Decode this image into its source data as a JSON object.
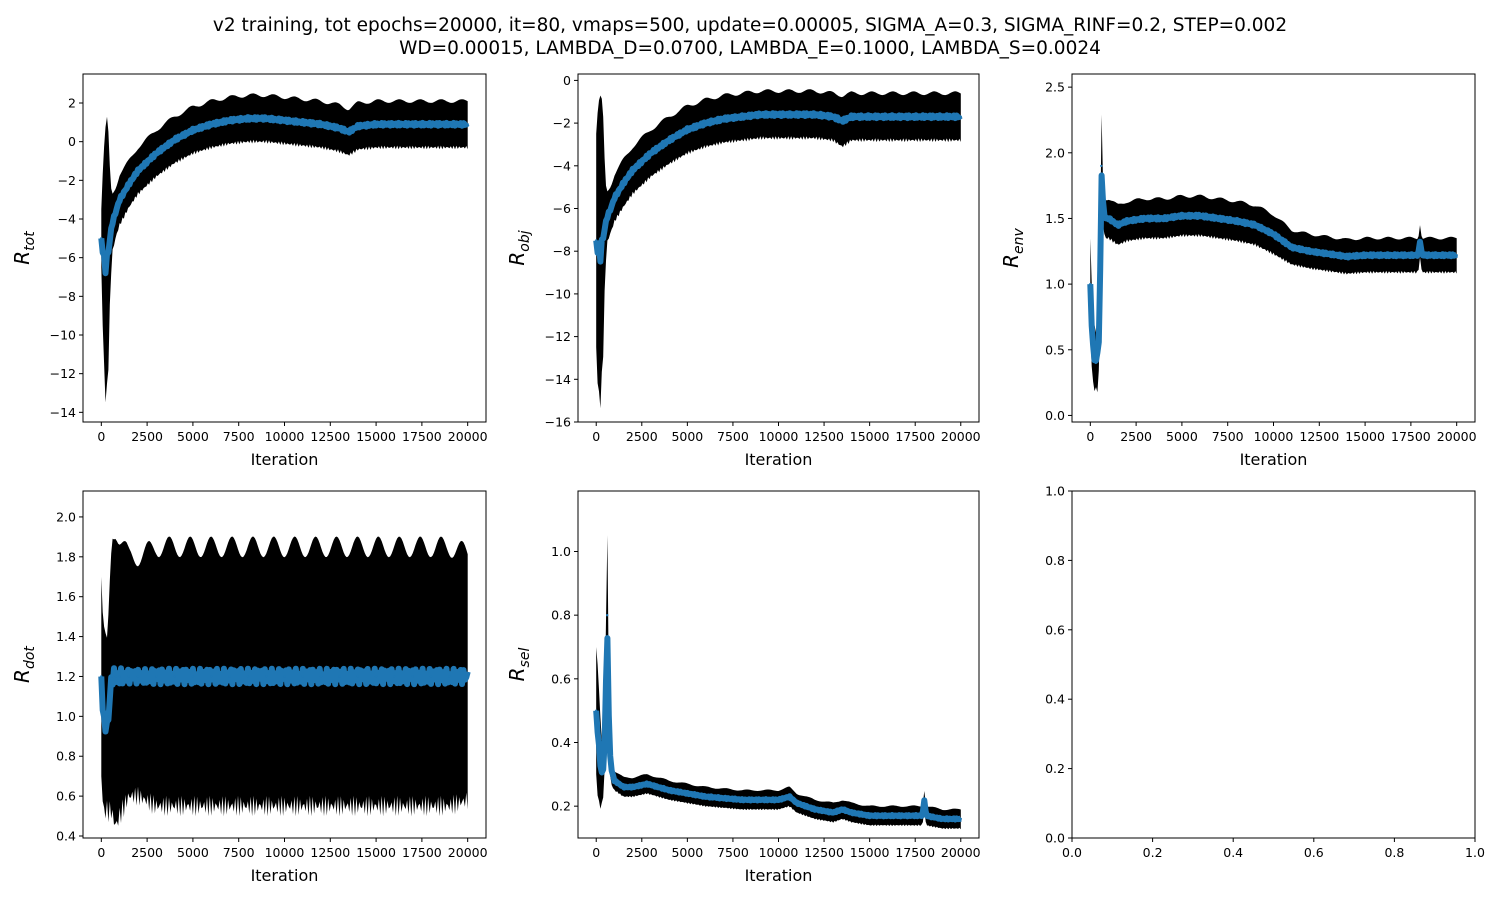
{
  "figure": {
    "title_line1": "v2 training, tot epochs=20000, it=80, vmaps=500, update=0.00005, SIGMA_A=0.3, SIGMA_RINF=0.2, STEP=0.002",
    "title_line2": "WD=0.00015, LAMBDA_D=0.0700, LAMBDA_E=0.1000, LAMBDA_S=0.0024"
  },
  "colors": {
    "mean_line": "#1f77b4",
    "errorbar": "#000000"
  },
  "chart_data": [
    {
      "id": "tot",
      "type": "line",
      "error_bars": true,
      "ylabel_main": "R",
      "ylabel_sub": "tot",
      "xlabel": "Iteration",
      "xlim": [
        -1000,
        21000
      ],
      "ylim": [
        -14.5,
        3.5
      ],
      "xticks": [
        0,
        2500,
        5000,
        7500,
        10000,
        12500,
        15000,
        17500,
        20000
      ],
      "xtick_labels": [
        "0",
        "2500",
        "5000",
        "7500",
        "10000",
        "12500",
        "15000",
        "17500",
        "20000"
      ],
      "yticks": [
        -14,
        -12,
        -10,
        -8,
        -6,
        -4,
        -2,
        0,
        2
      ],
      "ytick_labels": [
        "−14",
        "−12",
        "−10",
        "−8",
        "−6",
        "−4",
        "−2",
        "0",
        "2"
      ],
      "series": [
        {
          "x": [
            0,
            100,
            200,
            300,
            400,
            500,
            600,
            800,
            1000,
            1500,
            2000,
            3000,
            4000,
            5000,
            6000,
            7000,
            8000,
            9000,
            10000,
            11000,
            12000,
            13000,
            13500,
            14000,
            15000,
            16000,
            17000,
            18000,
            19000,
            20000
          ],
          "y": [
            -5.0,
            -5.8,
            -6.5,
            -6.2,
            -5.5,
            -4.8,
            -4.2,
            -3.6,
            -3.0,
            -2.2,
            -1.5,
            -0.6,
            0.1,
            0.6,
            0.9,
            1.1,
            1.2,
            1.2,
            1.1,
            1.0,
            0.9,
            0.7,
            0.5,
            0.8,
            0.9,
            0.9,
            0.9,
            0.9,
            0.9,
            0.9
          ],
          "err": [
            1.5,
            4.5,
            6.5,
            7.0,
            5.5,
            2.5,
            1.5,
            1.3,
            1.3,
            1.2,
            1.2,
            1.2,
            1.2,
            1.2,
            1.2,
            1.2,
            1.2,
            1.2,
            1.2,
            1.2,
            1.2,
            1.2,
            1.2,
            1.2,
            1.2,
            1.2,
            1.2,
            1.2,
            1.2,
            1.2
          ]
        }
      ]
    },
    {
      "id": "obj",
      "type": "line",
      "error_bars": true,
      "ylabel_main": "R",
      "ylabel_sub": "obj",
      "xlabel": "Iteration",
      "xlim": [
        -1000,
        21000
      ],
      "ylim": [
        -16,
        0.3
      ],
      "xticks": [
        0,
        2500,
        5000,
        7500,
        10000,
        12500,
        15000,
        17500,
        20000
      ],
      "xtick_labels": [
        "0",
        "2500",
        "5000",
        "7500",
        "10000",
        "12500",
        "15000",
        "17500",
        "20000"
      ],
      "yticks": [
        -16,
        -14,
        -12,
        -10,
        -8,
        -6,
        -4,
        -2,
        0
      ],
      "ytick_labels": [
        "−16",
        "−14",
        "−12",
        "−10",
        "−8",
        "−6",
        "−4",
        "−2",
        "0"
      ],
      "series": [
        {
          "x": [
            0,
            100,
            200,
            300,
            400,
            500,
            600,
            800,
            1000,
            1500,
            2000,
            3000,
            4000,
            5000,
            6000,
            7000,
            8000,
            9000,
            10000,
            11000,
            12000,
            13000,
            13500,
            14000,
            15000,
            16000,
            17000,
            18000,
            19000,
            20000
          ],
          "y": [
            -7.5,
            -8.0,
            -8.2,
            -7.8,
            -7.2,
            -6.8,
            -6.4,
            -6.0,
            -5.5,
            -4.8,
            -4.2,
            -3.4,
            -2.8,
            -2.3,
            -2.0,
            -1.8,
            -1.7,
            -1.6,
            -1.6,
            -1.6,
            -1.6,
            -1.7,
            -1.9,
            -1.7,
            -1.7,
            -1.7,
            -1.7,
            -1.7,
            -1.7,
            -1.7
          ],
          "err": [
            5.0,
            6.5,
            7.0,
            6.5,
            5.0,
            2.0,
            1.2,
            1.1,
            1.1,
            1.1,
            1.1,
            1.1,
            1.1,
            1.1,
            1.1,
            1.1,
            1.1,
            1.1,
            1.1,
            1.1,
            1.1,
            1.1,
            1.2,
            1.1,
            1.1,
            1.1,
            1.1,
            1.1,
            1.1,
            1.1
          ]
        }
      ]
    },
    {
      "id": "env",
      "type": "line",
      "error_bars": true,
      "ylabel_main": "R",
      "ylabel_sub": "env",
      "xlabel": "Iteration",
      "xlim": [
        -1000,
        21000
      ],
      "ylim": [
        -0.05,
        2.6
      ],
      "xticks": [
        0,
        2500,
        5000,
        7500,
        10000,
        12500,
        15000,
        17500,
        20000
      ],
      "xtick_labels": [
        "0",
        "2500",
        "5000",
        "7500",
        "10000",
        "12500",
        "15000",
        "17500",
        "20000"
      ],
      "yticks": [
        0.0,
        0.5,
        1.0,
        1.5,
        2.0,
        2.5
      ],
      "ytick_labels": [
        "0.0",
        "0.5",
        "1.0",
        "1.5",
        "2.0",
        "2.5"
      ],
      "series": [
        {
          "x": [
            0,
            100,
            200,
            300,
            400,
            500,
            600,
            700,
            800,
            1000,
            1500,
            2000,
            3000,
            4000,
            5000,
            6000,
            7000,
            8000,
            9000,
            10000,
            11000,
            12000,
            13000,
            14000,
            15000,
            16000,
            17000,
            17900,
            18000,
            18100,
            19000,
            20000
          ],
          "y": [
            1.0,
            0.6,
            0.45,
            0.4,
            0.5,
            0.6,
            1.9,
            1.6,
            1.5,
            1.5,
            1.45,
            1.48,
            1.5,
            1.5,
            1.52,
            1.52,
            1.5,
            1.48,
            1.45,
            1.38,
            1.28,
            1.25,
            1.23,
            1.21,
            1.22,
            1.22,
            1.22,
            1.22,
            1.33,
            1.22,
            1.22,
            1.22
          ],
          "err": [
            0.35,
            0.3,
            0.25,
            0.2,
            0.3,
            0.2,
            0.5,
            0.15,
            0.15,
            0.15,
            0.15,
            0.15,
            0.15,
            0.15,
            0.15,
            0.15,
            0.15,
            0.15,
            0.15,
            0.15,
            0.13,
            0.13,
            0.13,
            0.13,
            0.13,
            0.13,
            0.13,
            0.13,
            0.13,
            0.13,
            0.13,
            0.13
          ]
        }
      ]
    },
    {
      "id": "dot",
      "type": "line",
      "error_bars": true,
      "ylabel_main": "R",
      "ylabel_sub": "dot",
      "xlabel": "Iteration",
      "xlim": [
        -1000,
        21000
      ],
      "ylim": [
        0.39,
        2.13
      ],
      "xticks": [
        0,
        2500,
        5000,
        7500,
        10000,
        12500,
        15000,
        17500,
        20000
      ],
      "xtick_labels": [
        "0",
        "2500",
        "5000",
        "7500",
        "10000",
        "12500",
        "15000",
        "17500",
        "20000"
      ],
      "yticks": [
        0.4,
        0.6,
        0.8,
        1.0,
        1.2,
        1.4,
        1.6,
        1.8,
        2.0
      ],
      "ytick_labels": [
        "0.4",
        "0.6",
        "0.8",
        "1.0",
        "1.2",
        "1.4",
        "1.6",
        "1.8",
        "2.0"
      ],
      "series": [
        {
          "x": [
            0,
            100,
            200,
            300,
            400,
            500,
            600,
            800,
            1000,
            1500,
            2000,
            3000,
            4000,
            5000,
            6000,
            7000,
            8000,
            9000,
            10000,
            11000,
            12000,
            13000,
            14000,
            15000,
            16000,
            17000,
            18000,
            19000,
            20000
          ],
          "y": [
            1.2,
            1.0,
            0.95,
            0.95,
            1.0,
            1.15,
            1.2,
            1.2,
            1.2,
            1.2,
            1.2,
            1.2,
            1.2,
            1.2,
            1.2,
            1.2,
            1.2,
            1.2,
            1.2,
            1.2,
            1.2,
            1.2,
            1.2,
            1.2,
            1.2,
            1.2,
            1.2,
            1.2,
            1.2
          ],
          "err": [
            0.5,
            0.45,
            0.45,
            0.4,
            0.5,
            0.6,
            0.7,
            0.75,
            0.7,
            0.6,
            0.6,
            0.65,
            0.65,
            0.65,
            0.65,
            0.65,
            0.65,
            0.65,
            0.65,
            0.65,
            0.65,
            0.65,
            0.65,
            0.65,
            0.65,
            0.65,
            0.65,
            0.65,
            0.62
          ]
        }
      ]
    },
    {
      "id": "sel",
      "type": "line",
      "error_bars": true,
      "ylabel_main": "R",
      "ylabel_sub": "sel",
      "xlabel": "Iteration",
      "xlim": [
        -1000,
        21000
      ],
      "ylim": [
        0.1,
        1.19
      ],
      "xticks": [
        0,
        2500,
        5000,
        7500,
        10000,
        12500,
        15000,
        17500,
        20000
      ],
      "xtick_labels": [
        "0",
        "2500",
        "5000",
        "7500",
        "10000",
        "12500",
        "15000",
        "17500",
        "20000"
      ],
      "yticks": [
        0.2,
        0.4,
        0.6,
        0.8,
        1.0
      ],
      "ytick_labels": [
        "0.2",
        "0.4",
        "0.6",
        "0.8",
        "1.0"
      ],
      "series": [
        {
          "x": [
            0,
            100,
            200,
            300,
            400,
            500,
            600,
            700,
            800,
            1000,
            1500,
            2000,
            2800,
            4000,
            5000,
            6000,
            7000,
            8000,
            9000,
            10000,
            10600,
            11000,
            12000,
            13000,
            13500,
            14000,
            15000,
            16000,
            17000,
            17900,
            18000,
            18100,
            19000,
            20000
          ],
          "y": [
            0.5,
            0.42,
            0.35,
            0.3,
            0.32,
            0.45,
            0.8,
            0.45,
            0.32,
            0.28,
            0.26,
            0.26,
            0.27,
            0.25,
            0.24,
            0.23,
            0.225,
            0.22,
            0.22,
            0.22,
            0.23,
            0.21,
            0.19,
            0.18,
            0.19,
            0.18,
            0.17,
            0.17,
            0.17,
            0.17,
            0.22,
            0.17,
            0.16,
            0.16
          ],
          "err": [
            0.2,
            0.2,
            0.15,
            0.1,
            0.08,
            0.1,
            0.35,
            0.1,
            0.05,
            0.03,
            0.03,
            0.03,
            0.03,
            0.03,
            0.03,
            0.03,
            0.03,
            0.03,
            0.03,
            0.03,
            0.03,
            0.03,
            0.03,
            0.03,
            0.03,
            0.03,
            0.03,
            0.03,
            0.03,
            0.03,
            0.03,
            0.03,
            0.03,
            0.03
          ]
        }
      ]
    },
    {
      "id": "empty",
      "type": "line",
      "error_bars": false,
      "ylabel_main": "",
      "ylabel_sub": "",
      "xlabel": "",
      "xlim": [
        0,
        1
      ],
      "ylim": [
        0,
        1
      ],
      "xticks": [
        0,
        0.2,
        0.4,
        0.6,
        0.8,
        1.0
      ],
      "xtick_labels": [
        "0.0",
        "0.2",
        "0.4",
        "0.6",
        "0.8",
        "1.0"
      ],
      "yticks": [
        0,
        0.2,
        0.4,
        0.6,
        0.8,
        1.0
      ],
      "ytick_labels": [
        "0.0",
        "0.2",
        "0.4",
        "0.6",
        "0.8",
        "1.0"
      ],
      "series": []
    }
  ]
}
